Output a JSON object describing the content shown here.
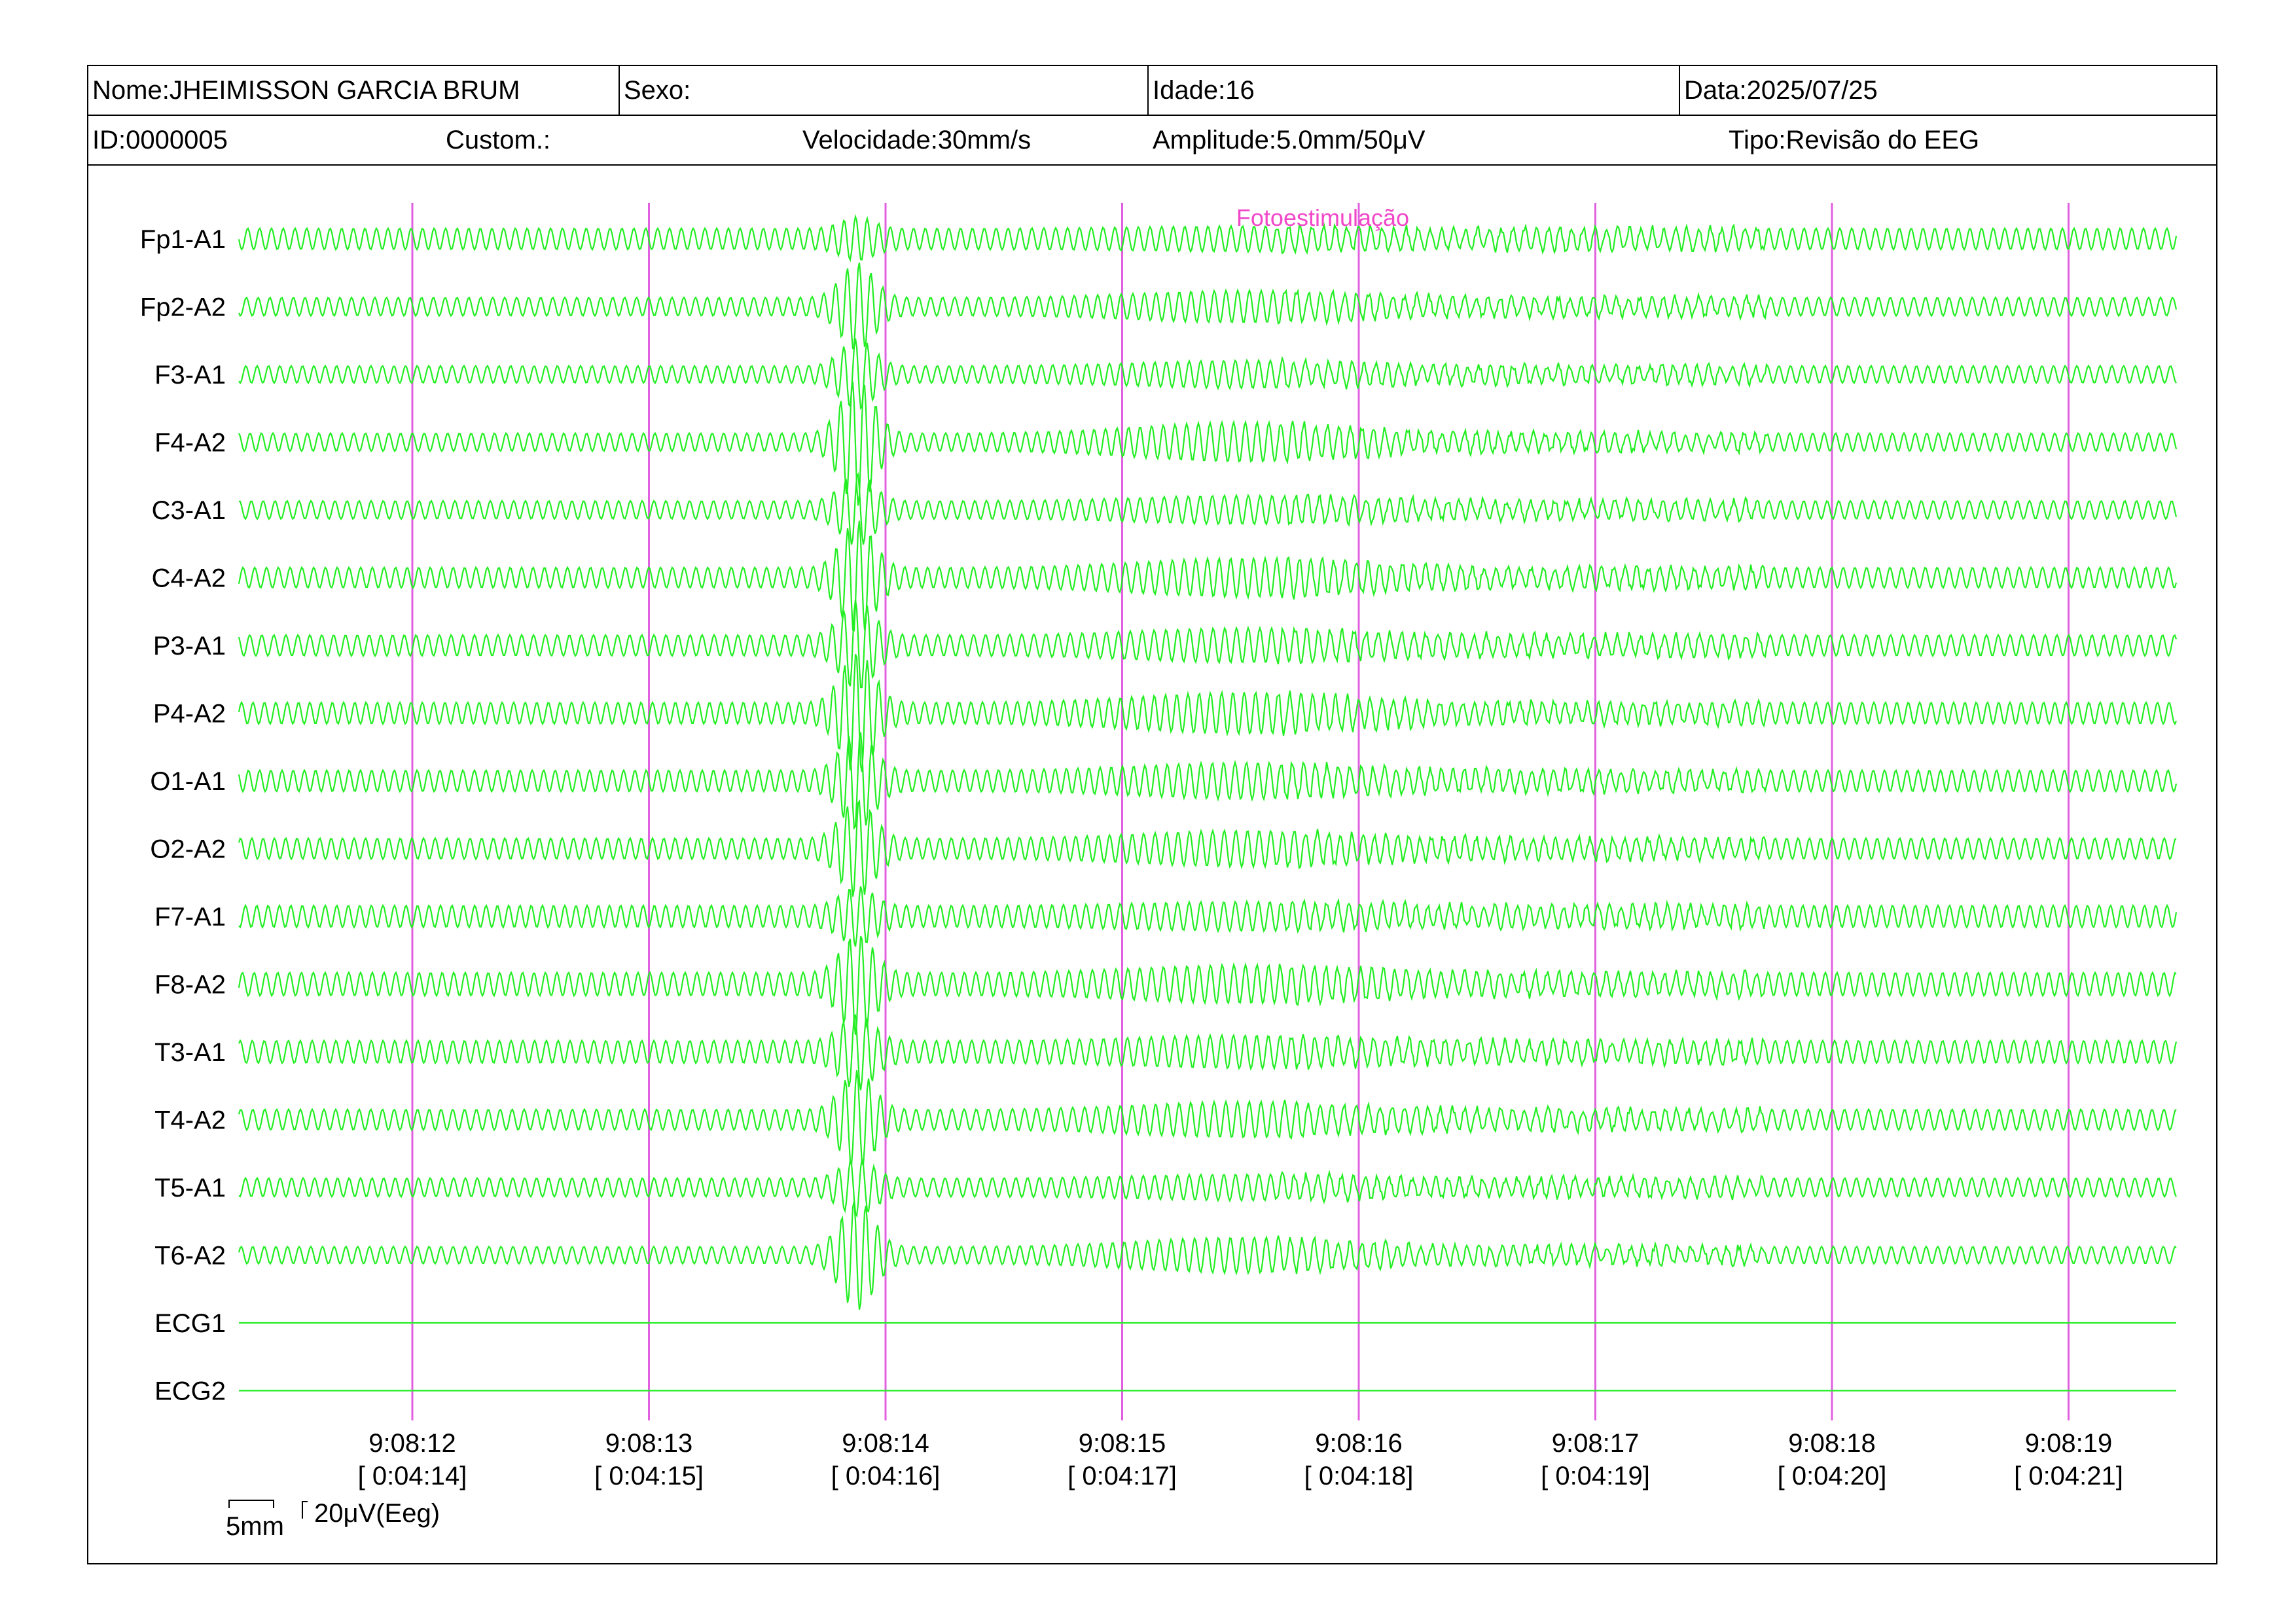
{
  "header": {
    "name_label": "Nome:JHEIMISSON GARCIA BRUM",
    "sex_label": "Sexo:",
    "age_label": "Idade:16",
    "date_label": "Data:2025/07/25",
    "id_label": "ID:0000005",
    "custom_label": "Custom.:",
    "speed_label": "Velocidade:30mm/s",
    "amplitude_label": "Amplitude:5.0mm/50μV",
    "type_label": "Tipo:Revisão do EEG"
  },
  "scale_bar": {
    "time_label": "5mm",
    "amplitude_label": "20μV(Eeg)"
  },
  "chart_data": {
    "type": "line",
    "title": "",
    "xlabel": "",
    "ylabel": "",
    "event_marker": {
      "label": "Fotoestimulação",
      "time": "9:08:16",
      "color": "#e040c8"
    },
    "time_ticks": [
      {
        "clock": "9:08:12",
        "elapsed": "[ 0:04:14]"
      },
      {
        "clock": "9:08:13",
        "elapsed": "[ 0:04:15]"
      },
      {
        "clock": "9:08:14",
        "elapsed": "[ 0:04:16]"
      },
      {
        "clock": "9:08:15",
        "elapsed": "[ 0:04:17]"
      },
      {
        "clock": "9:08:16",
        "elapsed": "[ 0:04:18]"
      },
      {
        "clock": "9:08:17",
        "elapsed": "[ 0:04:19]"
      },
      {
        "clock": "9:08:18",
        "elapsed": "[ 0:04:20]"
      },
      {
        "clock": "9:08:19",
        "elapsed": "[ 0:04:21]"
      }
    ],
    "series": [
      {
        "name": "Fp1-A1",
        "flat": false,
        "burst": 0.3
      },
      {
        "name": "Fp2-A2",
        "flat": false,
        "burst": 0.9
      },
      {
        "name": "F3-A1",
        "flat": false,
        "burst": 0.7
      },
      {
        "name": "F4-A2",
        "flat": false,
        "burst": 1.4
      },
      {
        "name": "C3-A1",
        "flat": false,
        "burst": 0.7
      },
      {
        "name": "C4-A2",
        "flat": false,
        "burst": 1.2
      },
      {
        "name": "P3-A1",
        "flat": false,
        "burst": 0.9
      },
      {
        "name": "P4-A2",
        "flat": false,
        "burst": 1.3
      },
      {
        "name": "O1-A1",
        "flat": false,
        "burst": 1.0
      },
      {
        "name": "O2-A2",
        "flat": false,
        "burst": 1.0
      },
      {
        "name": "F7-A1",
        "flat": false,
        "burst": 0.5
      },
      {
        "name": "F8-A2",
        "flat": false,
        "burst": 1.0
      },
      {
        "name": "T3-A1",
        "flat": false,
        "burst": 0.7
      },
      {
        "name": "T4-A2",
        "flat": false,
        "burst": 1.0
      },
      {
        "name": "T5-A1",
        "flat": false,
        "burst": 0.5
      },
      {
        "name": "T6-A2",
        "flat": false,
        "burst": 1.2
      },
      {
        "name": "ECG1",
        "flat": true,
        "burst": 0
      },
      {
        "name": "ECG2",
        "flat": true,
        "burst": 0
      }
    ],
    "colors": {
      "trace": "#22ee22",
      "gridline": "#e060e0",
      "marker_text": "#f048c8"
    }
  }
}
